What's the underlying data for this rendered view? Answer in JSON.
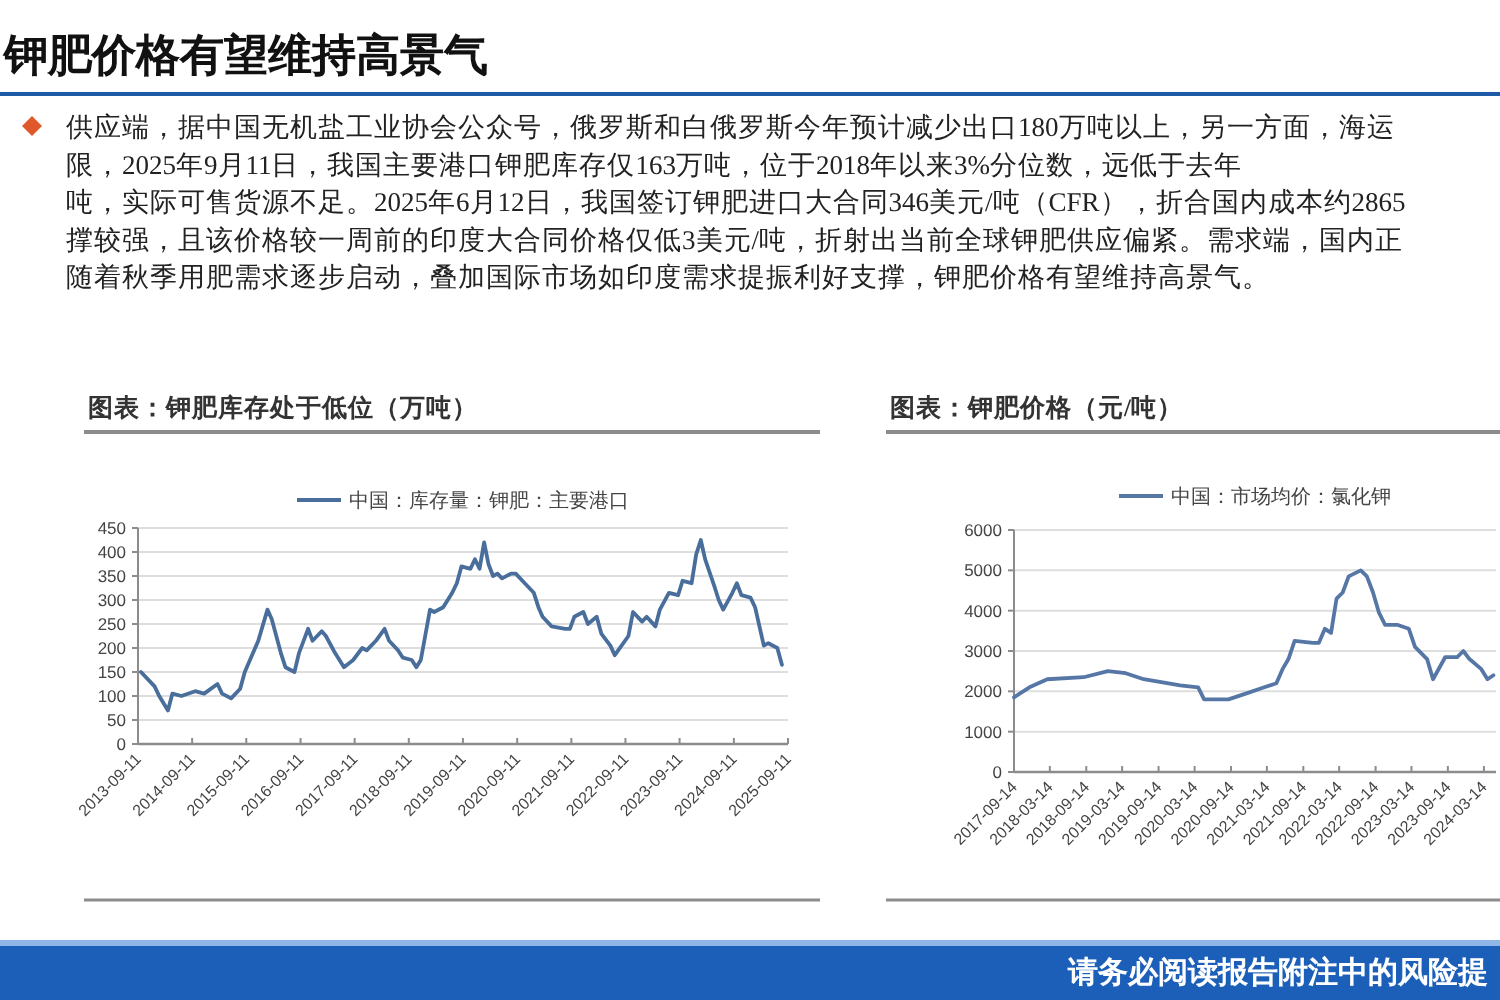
{
  "chart_data": [
    {
      "type": "other",
      "title": "钾肥价格有望维持高景气",
      "annotations": [
        "供应端，据中国无机盐工业协会公众号，俄罗斯和白俄罗斯今年预计减少出口180万吨以上，另一方面，海运",
        "限，2025年9月11日，我国主要港口钾肥库存仅163万吨，位于2018年以来3%分位数，远低于去年",
        "吨，实际可售货源不足。2025年6月12日，我国签订钾肥进口大合同346美元/吨（CFR），折合国内成本约2865",
        "撑较强，且该价格较一周前的印度大合同价格仅低3美元/吨，折射出当前全球钾肥供应偏紧。需求端，国内正",
        "随着秋季用肥需求逐步启动，叠加国际市场如印度需求提振利好支撑，钾肥价格有望维持高景气。"
      ]
    },
    {
      "type": "line",
      "title": "图表：钾肥库存处于低位（万吨）",
      "x": [
        "2013-10",
        "2014-01",
        "2014-02",
        "2014-04",
        "2014-05",
        "2014-07",
        "2014-10",
        "2014-12",
        "2015-03",
        "2015-04",
        "2015-06",
        "2015-08",
        "2015-09",
        "2015-12",
        "2016-02",
        "2016-03",
        "2016-05",
        "2016-06",
        "2016-08",
        "2016-09",
        "2016-11",
        "2016-12",
        "2017-02",
        "2017-03",
        "2017-05",
        "2017-07",
        "2017-09",
        "2017-11",
        "2017-12",
        "2018-02",
        "2018-04",
        "2018-05",
        "2018-07",
        "2018-08",
        "2018-10",
        "2018-11",
        "2018-12",
        "2019-02",
        "2019-03",
        "2019-05",
        "2019-07",
        "2019-08",
        "2019-09",
        "2019-11",
        "2019-12",
        "2020-01",
        "2020-02",
        "2020-03",
        "2020-04",
        "2020-05",
        "2020-06",
        "2020-08",
        "2020-09",
        "2020-11",
        "2021-01",
        "2021-02",
        "2021-03",
        "2021-05",
        "2021-08",
        "2021-09",
        "2021-10",
        "2021-12",
        "2022-01",
        "2022-03",
        "2022-04",
        "2022-06",
        "2022-07",
        "2022-10",
        "2022-11",
        "2023-01",
        "2023-02",
        "2023-04",
        "2023-05",
        "2023-07",
        "2023-09",
        "2023-10",
        "2023-12",
        "2024-01",
        "2024-02",
        "2024-03",
        "2024-05",
        "2024-06",
        "2024-07",
        "2024-09",
        "2024-10",
        "2024-11",
        "2025-01",
        "2025-02",
        "2025-04",
        "2025-05",
        "2025-07",
        "2025-08"
      ],
      "series": [
        {
          "name": "中国：库存量：钾肥：主要港口",
          "color": "#4a6e9c",
          "values": [
            150,
            120,
            100,
            70,
            105,
            100,
            110,
            105,
            125,
            105,
            95,
            115,
            150,
            215,
            280,
            260,
            190,
            160,
            150,
            190,
            240,
            215,
            235,
            225,
            190,
            160,
            175,
            200,
            195,
            215,
            240,
            215,
            195,
            180,
            175,
            160,
            175,
            280,
            275,
            285,
            315,
            335,
            370,
            365,
            385,
            365,
            420,
            375,
            350,
            355,
            345,
            355,
            355,
            335,
            315,
            285,
            265,
            245,
            240,
            240,
            265,
            275,
            250,
            265,
            230,
            205,
            185,
            225,
            275,
            255,
            265,
            245,
            280,
            315,
            310,
            340,
            335,
            395,
            425,
            385,
            330,
            300,
            280,
            315,
            335,
            310,
            305,
            285,
            205,
            210,
            200,
            165
          ]
        }
      ],
      "xlim": [
        "2013-09-11",
        "2025-09-11"
      ],
      "xticks": [
        "2013-09-11",
        "2014-09-11",
        "2015-09-11",
        "2016-09-11",
        "2017-09-11",
        "2018-09-11",
        "2019-09-11",
        "2020-09-11",
        "2021-09-11",
        "2022-09-11",
        "2023-09-11",
        "2024-09-11",
        "2025-09-11"
      ],
      "ylim": [
        0,
        450
      ],
      "yticks": [
        0,
        50,
        100,
        150,
        200,
        250,
        300,
        350,
        400,
        450
      ],
      "grid": "y",
      "legend": "top"
    },
    {
      "type": "line",
      "title": "图表：钾肥价格（元/吨）",
      "x": [
        "2017-09-14",
        "2017-12",
        "2018-03",
        "2018-09",
        "2019-01",
        "2019-04",
        "2019-07",
        "2020-01",
        "2020-04",
        "2020-05",
        "2020-09",
        "2020-12",
        "2021-03",
        "2021-05",
        "2021-06",
        "2021-07",
        "2021-08",
        "2021-11",
        "2021-12",
        "2022-01",
        "2022-02",
        "2022-03",
        "2022-04",
        "2022-05",
        "2022-07",
        "2022-08",
        "2022-09",
        "2022-10",
        "2022-11",
        "2023-01",
        "2023-03",
        "2023-04",
        "2023-06",
        "2023-07",
        "2023-09",
        "2023-11",
        "2023-12",
        "2024-01",
        "2024-03",
        "2024-04",
        "2024-05"
      ],
      "series": [
        {
          "name": "中国：市场均价：氯化钾",
          "color": "#5677a6",
          "values": [
            1850,
            2100,
            2300,
            2350,
            2500,
            2450,
            2300,
            2150,
            2100,
            1800,
            1800,
            1950,
            2100,
            2200,
            2550,
            2800,
            3250,
            3200,
            3200,
            3550,
            3450,
            4300,
            4450,
            4850,
            5000,
            4850,
            4450,
            3950,
            3650,
            3650,
            3550,
            3100,
            2800,
            2300,
            2850,
            2850,
            3000,
            2800,
            2550,
            2300,
            2400
          ]
        }
      ],
      "xlim": [
        "2017-09-14",
        "2024-05-14"
      ],
      "xticks": [
        "2017-09-14",
        "2018-03-14",
        "2018-09-14",
        "2019-03-14",
        "2019-09-14",
        "2020-03-14",
        "2020-09-14",
        "2021-03-14",
        "2021-09-14",
        "2022-03-14",
        "2022-09-14",
        "2023-03-14",
        "2023-09-14",
        "2024-03-14"
      ],
      "ylim": [
        0,
        6000
      ],
      "yticks": [
        0,
        1000,
        2000,
        3000,
        4000,
        5000,
        6000
      ],
      "grid": "y",
      "legend": "top"
    },
    {
      "type": "other",
      "annotations": [
        "请务必阅读报告附注中的风险提"
      ]
    }
  ]
}
